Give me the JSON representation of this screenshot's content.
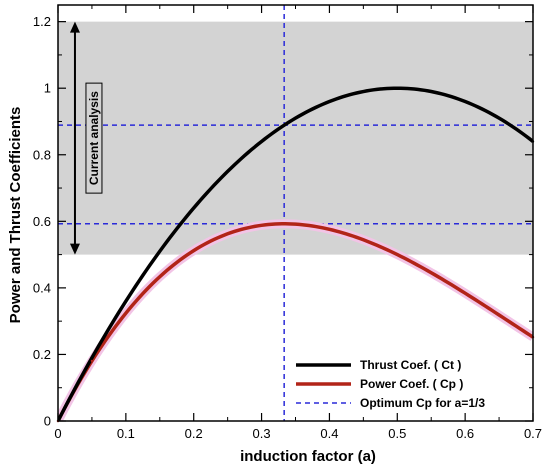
{
  "chart_data": {
    "type": "line",
    "xlabel": "induction factor (a)",
    "ylabel": "Power and Thrust Coefficients",
    "xlim": [
      0,
      0.7
    ],
    "ylim": [
      0,
      1.25
    ],
    "x_ticks": [
      "0",
      "0.1",
      "0.2",
      "0.3",
      "0.4",
      "0.5",
      "0.6",
      "0.7"
    ],
    "y_ticks": [
      "0",
      "0.2",
      "0.4",
      "0.6",
      "0.8",
      "1",
      "1.2"
    ],
    "x_tick_values": [
      0,
      0.1,
      0.2,
      0.3,
      0.4,
      0.5,
      0.6,
      0.7
    ],
    "y_tick_values": [
      0,
      0.2,
      0.4,
      0.6,
      0.8,
      1.0,
      1.2
    ],
    "grid": false,
    "legend_position": "bottom-right",
    "shaded_band": {
      "y_range": [
        0.5,
        1.2
      ],
      "color": "#d3d3d3"
    },
    "annotation": {
      "text": "Current analysis",
      "y_range": [
        0.5,
        1.2
      ],
      "x": 0.025
    },
    "series": [
      {
        "name": "Thrust Coef. ( Ct )",
        "color": "#000000",
        "style": "solid",
        "x": [
          0,
          0.05,
          0.1,
          0.15,
          0.2,
          0.25,
          0.3,
          0.333,
          0.35,
          0.4,
          0.45,
          0.5,
          0.55,
          0.6,
          0.65,
          0.7
        ],
        "y": [
          0,
          0.19,
          0.36,
          0.51,
          0.64,
          0.75,
          0.84,
          0.889,
          0.91,
          0.96,
          0.99,
          1.0,
          0.99,
          0.96,
          0.91,
          0.84
        ]
      },
      {
        "name": "Power Coef. ( Cp )",
        "color": "#b22418",
        "style": "solid",
        "x": [
          0,
          0.05,
          0.1,
          0.15,
          0.2,
          0.25,
          0.3,
          0.333,
          0.35,
          0.4,
          0.45,
          0.5,
          0.55,
          0.6,
          0.65,
          0.7
        ],
        "y": [
          0,
          0.1805,
          0.324,
          0.4335,
          0.512,
          0.5625,
          0.588,
          0.5926,
          0.5915,
          0.576,
          0.5445,
          0.5,
          0.4455,
          0.384,
          0.3185,
          0.252
        ]
      },
      {
        "name": "Optimum Cp for a=1/3",
        "color": "#2a2ad8",
        "style": "dashed",
        "vertical_x": 0.3333,
        "horizontal_y": [
          0.5926,
          0.8889
        ]
      }
    ]
  }
}
